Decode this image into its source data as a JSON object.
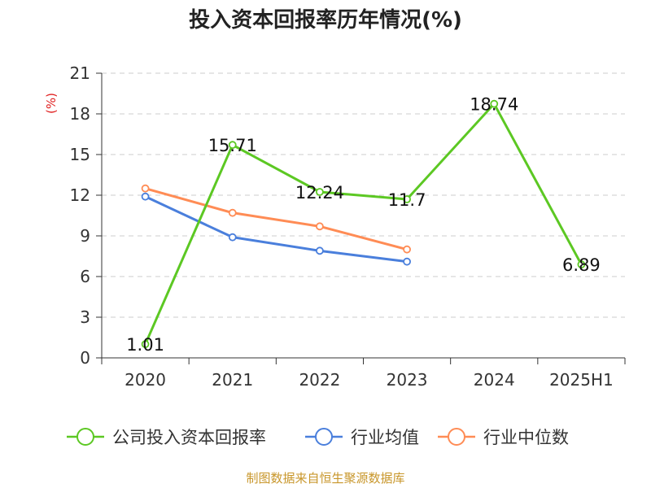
{
  "chart_data": {
    "type": "line",
    "title": "投入资本回报率历年情况(%)",
    "xlabel": "",
    "ylabel": "(%)",
    "categories": [
      "2020",
      "2021",
      "2022",
      "2023",
      "2024",
      "2025H1"
    ],
    "ylim": [
      0,
      21
    ],
    "yticks": [
      0,
      3,
      6,
      9,
      12,
      15,
      18,
      21
    ],
    "grid": true,
    "legend_position": "bottom",
    "series": [
      {
        "name": "公司投入资本回报率",
        "color": "#5cc823",
        "values": [
          1.01,
          15.71,
          12.24,
          11.7,
          18.74,
          6.89
        ],
        "value_labels": [
          "1.01",
          "15.71",
          "12.24",
          "11.7",
          "18.74",
          "6.89"
        ]
      },
      {
        "name": "行业均值",
        "color": "#4a7fdc",
        "values": [
          11.9,
          8.9,
          7.9,
          7.1,
          null,
          null
        ]
      },
      {
        "name": "行业中位数",
        "color": "#ff8c55",
        "values": [
          12.5,
          10.7,
          9.7,
          8.0,
          null,
          null
        ]
      }
    ]
  },
  "footer": {
    "source": "制图数据来自恒生聚源数据库"
  }
}
